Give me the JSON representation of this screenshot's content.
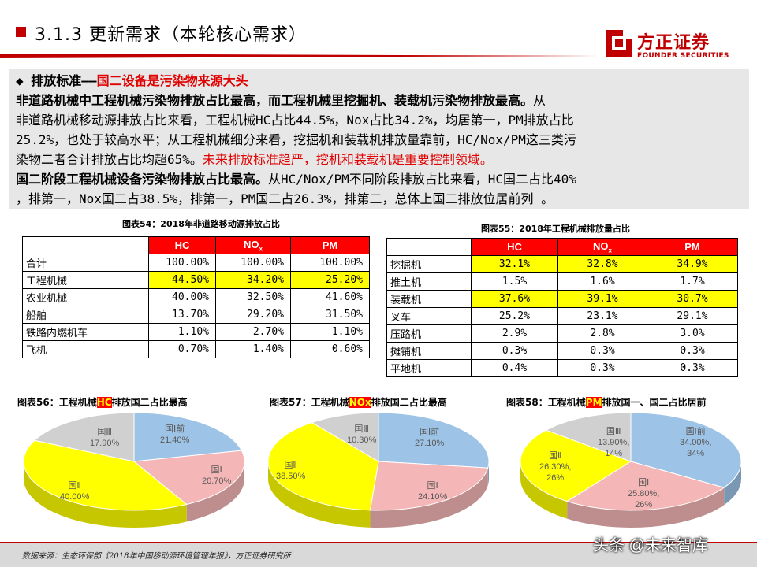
{
  "header": {
    "title": "3.1.3 更新需求（本轮核心需求）",
    "logo_cn": "方正证券",
    "logo_en": "FOUNDER SECURITIES"
  },
  "textbox": {
    "bullet": "◆",
    "l1_black": "排放标准——",
    "l1_red": "国二设备是污染物来源大头",
    "l2_bold": "非道路机械中工程机械污染物排放占比最高，而工程机械里挖掘机、装载机污染物排放最高。",
    "l2_tail": "从",
    "l3": "非道路机械移动源排放占比来看，工程机械HC占比44.5%，Nox占比34.2%，均居第一，PM排放占比",
    "l4": "25.2%，也处于较高水平；从工程机械细分来看，挖掘机和装载机排放量靠前，HC/Nox/PM这三类污",
    "l5_black": "染物二者合计排放占比均超65%。",
    "l5_red": "未来排放标准趋严，挖机和装载机是重要控制领域。",
    "l6_bold": "国二阶段工程机械设备污染物排放占比最高。",
    "l6_tail": "从HC/Nox/PM不同阶段排放占比来看，HC国二占比40%",
    "l7": "，排第一，Nox国二占38.5%，排第一，PM国二占26.3%，排第二，总体上国二排放位居前列 。"
  },
  "table54": {
    "caption": "图表54：2018年非道路移动源排放占比",
    "headers": [
      "HC",
      "NO",
      "x",
      "PM"
    ],
    "rows": [
      [
        "合计",
        "100.00%",
        "100.00%",
        "100.00%"
      ],
      [
        "工程机械",
        "44.50%",
        "34.20%",
        "25.20%"
      ],
      [
        "农业机械",
        "40.00%",
        "32.50%",
        "41.60%"
      ],
      [
        "船舶",
        "13.70%",
        "29.20%",
        "31.50%"
      ],
      [
        "铁路内燃机车",
        "1.10%",
        "2.70%",
        "1.10%"
      ],
      [
        "飞机",
        "0.70%",
        "1.40%",
        "0.60%"
      ]
    ]
  },
  "table55": {
    "caption": "图表55：2018年工程机械排放量占比",
    "headers": [
      "HC",
      "NO",
      "x",
      "PM"
    ],
    "rows": [
      [
        "挖掘机",
        "32.1%",
        "32.8%",
        "34.9%"
      ],
      [
        "推土机",
        "1.5%",
        "1.6%",
        "1.7%"
      ],
      [
        "装载机",
        "37.6%",
        "39.1%",
        "30.7%"
      ],
      [
        "叉车",
        "25.2%",
        "23.1%",
        "29.1%"
      ],
      [
        "压路机",
        "2.9%",
        "2.8%",
        "3.0%"
      ],
      [
        "摊铺机",
        "0.3%",
        "0.3%",
        "0.3%"
      ],
      [
        "平地机",
        "0.4%",
        "0.3%",
        "0.3%"
      ]
    ]
  },
  "pies": {
    "p56_pre": "图表56：工程机械",
    "p56_hl": "HC",
    "p56_post": "排放国二占比最高",
    "p57_pre": "图表57：工程机械",
    "p57_hl": "NOx",
    "p57_post": "排放国二占比最高",
    "p58_pre": "图表58：工程机械",
    "p58_hl": "PM",
    "p58_post": "排放国一、国二占比居前",
    "labels": {
      "p56": [
        {
          "name": "国Ⅰ前",
          "value": "21.40%"
        },
        {
          "name": "国Ⅰ",
          "value": "20.70%"
        },
        {
          "name": "国Ⅱ",
          "value": "40.00%"
        },
        {
          "name": "国Ⅲ",
          "value": "17.90%"
        }
      ],
      "p57": [
        {
          "name": "国Ⅰ前",
          "value": "27.10%"
        },
        {
          "name": "国Ⅰ",
          "value": "24.10%"
        },
        {
          "name": "国Ⅱ",
          "value": "38.50%"
        },
        {
          "name": "国Ⅲ",
          "value": "10.30%"
        }
      ],
      "p58": [
        {
          "name": "国Ⅰ前",
          "value": "34.00%",
          "pct": "34%"
        },
        {
          "name": "国Ⅰ",
          "value": "25.80%",
          "pct": "26%"
        },
        {
          "name": "国Ⅱ",
          "value": "26.30%",
          "pct": "26%"
        },
        {
          "name": "国Ⅲ",
          "value": "13.90%",
          "pct": "14%"
        }
      ]
    }
  },
  "chart_data": [
    {
      "type": "pie",
      "title": "",
      "categories": [
        "国Ⅰ前",
        "国Ⅰ",
        "国Ⅱ",
        "国Ⅲ"
      ],
      "values": [
        21.4,
        20.7,
        40.0,
        17.9
      ]
    },
    {
      "type": "pie",
      "title": "",
      "categories": [
        "国Ⅰ前",
        "国Ⅰ",
        "国Ⅱ",
        "国Ⅲ"
      ],
      "values": [
        27.1,
        24.1,
        38.5,
        10.3
      ]
    },
    {
      "type": "pie",
      "title": "",
      "categories": [
        "国Ⅰ前",
        "国Ⅰ",
        "国Ⅱ",
        "国Ⅲ"
      ],
      "values": [
        34.0,
        25.8,
        26.3,
        13.9
      ]
    }
  ],
  "colors": {
    "accent_red": "#c00000",
    "highlight_yellow": "#ffff00",
    "slice_pre": "#9dc3e6",
    "slice_g1": "#f4b6b6",
    "slice_g2": "#ffff00",
    "slice_g3": "#d0d0d0"
  },
  "footer": {
    "source": "数据来源：生态环保部《2018年中国移动源环境管理年报》，方正证券研究所",
    "watermark": "头条 @未来智库"
  }
}
